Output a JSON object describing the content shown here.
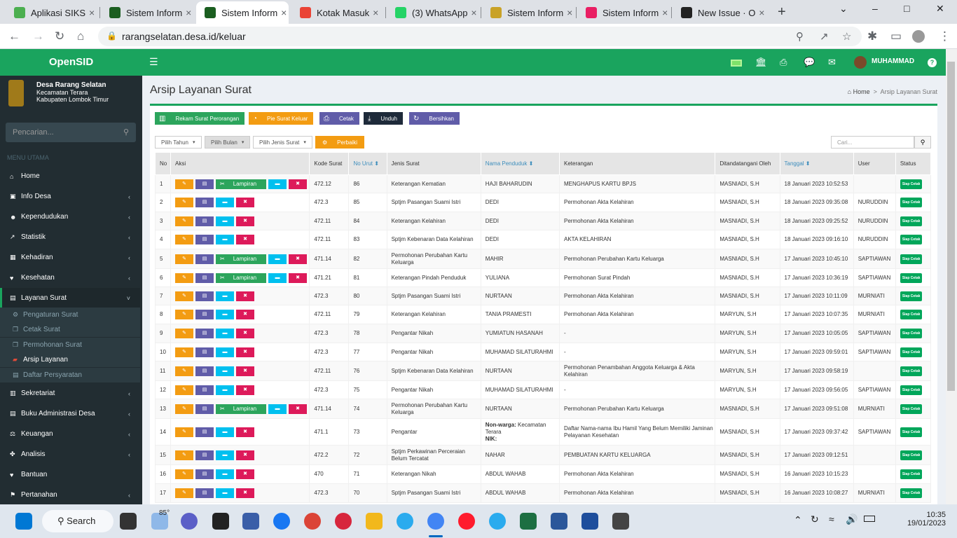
{
  "browser": {
    "tabs": [
      {
        "title": "Aplikasi SIKS",
        "color": "#4caf50",
        "active": false
      },
      {
        "title": "Sistem Inform",
        "color": "#1b5e20",
        "active": false
      },
      {
        "title": "Sistem Inform",
        "color": "#1b5e20",
        "active": true
      },
      {
        "title": "Kotak Masuk",
        "color": "#ea4335",
        "active": false
      },
      {
        "title": "(3) WhatsApp",
        "color": "#25d366",
        "active": false
      },
      {
        "title": "Sistem Inform",
        "color": "#c9a227",
        "active": false
      },
      {
        "title": "Sistem Inform",
        "color": "#e91e63",
        "active": false
      },
      {
        "title": "New Issue · O",
        "color": "#222222",
        "active": false
      }
    ],
    "url": "rarangselatan.desa.id/keluar"
  },
  "sidebar": {
    "app_name": "OpenSID",
    "village_name": "Desa Rarang Selatan",
    "district": "Kecamatan Terara",
    "regency": "Kabupaten Lombok Timur",
    "search_placeholder": "Pencarian...",
    "menu_header": "MENU UTAMA",
    "items": [
      {
        "label": "Home",
        "icon": "home-icon",
        "chevron": false
      },
      {
        "label": "Info Desa",
        "icon": "building-icon",
        "chevron": true
      },
      {
        "label": "Kependudukan",
        "icon": "users-icon",
        "chevron": true
      },
      {
        "label": "Statistik",
        "icon": "chart-icon",
        "chevron": true
      },
      {
        "label": "Kehadiran",
        "icon": "calendar-icon",
        "chevron": true
      },
      {
        "label": "Kesehatan",
        "icon": "heartbeat-icon",
        "chevron": true
      },
      {
        "label": "Layanan Surat",
        "icon": "book-icon",
        "chevron": true
      }
    ],
    "subitems": [
      {
        "label": "Pengaturan Surat",
        "icon": "gear-icon"
      },
      {
        "label": "Cetak Surat",
        "icon": "files-icon"
      },
      {
        "label": "Permohonan Surat",
        "icon": "files-icon"
      },
      {
        "label": "Arsip Layanan",
        "icon": "folder-icon"
      },
      {
        "label": "Daftar Persyaratan",
        "icon": "book-icon"
      }
    ],
    "items2": [
      {
        "label": "Sekretariat",
        "icon": "archive-icon"
      },
      {
        "label": "Buku Administrasi Desa",
        "icon": "book-icon"
      },
      {
        "label": "Keuangan",
        "icon": "balance-icon"
      },
      {
        "label": "Analisis",
        "icon": "analysis-icon"
      },
      {
        "label": "Bantuan",
        "icon": "heart-icon"
      },
      {
        "label": "Pertanahan",
        "icon": "map-icon"
      }
    ]
  },
  "topnav": {
    "user": "MUHAMMAD"
  },
  "page": {
    "title": "Arsip Layanan Surat",
    "breadcrumb_home": "Home",
    "breadcrumb_current": "Arsip Layanan Surat",
    "toolbar": [
      {
        "label": "Rekam Surat Perorangan",
        "color": "#2ca55c"
      },
      {
        "label": "Pie Surat Keluar",
        "color": "#f39c12"
      },
      {
        "label": "Cetak",
        "color": "#605ca8"
      },
      {
        "label": "Unduh",
        "color": "#1e2a3a"
      },
      {
        "label": "Bersihkan",
        "color": "#605ca8"
      }
    ],
    "filters": [
      "Pilih Tahun",
      "Pilih Bulan",
      "Pilih Jenis Surat"
    ],
    "fix_label": "Perbaiki",
    "search_placeholder": "Cari...",
    "columns": [
      "No",
      "Aksi",
      "Kode Surat",
      "No Urut",
      "Jenis Surat",
      "Nama Penduduk",
      "Keterangan",
      "Ditandatangani Oleh",
      "Tanggal",
      "User",
      "Status"
    ],
    "lampiran_label": "Lampiran",
    "status_label": "Siap Cetak",
    "rows": [
      {
        "no": "1",
        "lamp": true,
        "kode": "472.12",
        "urut": "86",
        "jenis": "Keterangan Kematian",
        "nama": "HAJI BAHARUDIN",
        "ket": "MENGHAPUS KARTU BPJS",
        "ttd": "MASNIADI, S.H",
        "tgl": "18 Januari 2023 10:52:53",
        "user": ""
      },
      {
        "no": "2",
        "lamp": false,
        "kode": "472.3",
        "urut": "85",
        "jenis": "Sptjm Pasangan Suami Istri",
        "nama": "DEDI",
        "ket": "Permohonan Akta Kelahiran",
        "ttd": "MASNIADI, S.H",
        "tgl": "18 Januari 2023 09:35:08",
        "user": "NURUDDIN"
      },
      {
        "no": "3",
        "lamp": false,
        "kode": "472.11",
        "urut": "84",
        "jenis": "Keterangan Kelahiran",
        "nama": "DEDI",
        "ket": "Permohonan Akta Kelahiran",
        "ttd": "MASNIADI, S.H",
        "tgl": "18 Januari 2023 09:25:52",
        "user": "NURUDDIN"
      },
      {
        "no": "4",
        "lamp": false,
        "kode": "472.11",
        "urut": "83",
        "jenis": "Sptjm Kebenaran Data Kelahiran",
        "nama": "DEDI",
        "ket": "AKTA KELAHIRAN",
        "ttd": "MASNIADI, S.H",
        "tgl": "18 Januari 2023 09:16:10",
        "user": "NURUDDIN"
      },
      {
        "no": "5",
        "lamp": true,
        "kode": "471.14",
        "urut": "82",
        "jenis": "Permohonan Perubahan Kartu Keluarga",
        "nama": "MAHIR",
        "ket": "Permohonan Perubahan Kartu Keluarga",
        "ttd": "MASNIADI, S.H",
        "tgl": "17 Januari 2023 10:45:10",
        "user": "SAPTIAWAN"
      },
      {
        "no": "6",
        "lamp": true,
        "kode": "471.21",
        "urut": "81",
        "jenis": "Keterangan Pindah Penduduk",
        "nama": "YULIANA",
        "ket": "Permohonan Surat Pindah",
        "ttd": "MASNIADI, S.H",
        "tgl": "17 Januari 2023 10:36:19",
        "user": "SAPTIAWAN"
      },
      {
        "no": "7",
        "lamp": false,
        "kode": "472.3",
        "urut": "80",
        "jenis": "Sptjm Pasangan Suami Istri",
        "nama": "NURTAAN",
        "ket": "Permohonan Akta Kelahiran",
        "ttd": "MASNIADI, S.H",
        "tgl": "17 Januari 2023 10:11:09",
        "user": "MURNIATI"
      },
      {
        "no": "8",
        "lamp": false,
        "kode": "472.11",
        "urut": "79",
        "jenis": "Keterangan Kelahiran",
        "nama": "TANIA PRAMESTI",
        "ket": "Permohonan Akta Kelahiran",
        "ttd": "MARYUN, S.H",
        "tgl": "17 Januari 2023 10:07:35",
        "user": "MURNIATI"
      },
      {
        "no": "9",
        "lamp": false,
        "kode": "472.3",
        "urut": "78",
        "jenis": "Pengantar Nikah",
        "nama": "YUMIATUN HASANAH",
        "ket": "-",
        "ttd": "MARYUN, S.H",
        "tgl": "17 Januari 2023 10:05:05",
        "user": "SAPTIAWAN"
      },
      {
        "no": "10",
        "lamp": false,
        "kode": "472.3",
        "urut": "77",
        "jenis": "Pengantar Nikah",
        "nama": "MUHAMAD SILATURAHMI",
        "ket": "-",
        "ttd": "MARYUN, S.H",
        "tgl": "17 Januari 2023 09:59:01",
        "user": "SAPTIAWAN"
      },
      {
        "no": "11",
        "lamp": false,
        "kode": "472.11",
        "urut": "76",
        "jenis": "Sptjm Kebenaran Data Kelahiran",
        "nama": "NURTAAN",
        "ket": "Permohonan Penambahan Anggota Keluarga & Akta Kelahiran",
        "ttd": "MARYUN, S.H",
        "tgl": "17 Januari 2023 09:58:19",
        "user": ""
      },
      {
        "no": "12",
        "lamp": false,
        "kode": "472.3",
        "urut": "75",
        "jenis": "Pengantar Nikah",
        "nama": "MUHAMAD SILATURAHMI",
        "ket": "-",
        "ttd": "MARYUN, S.H",
        "tgl": "17 Januari 2023 09:56:05",
        "user": "SAPTIAWAN"
      },
      {
        "no": "13",
        "lamp": true,
        "kode": "471.14",
        "urut": "74",
        "jenis": "Permohonan Perubahan Kartu Keluarga",
        "nama": "NURTAAN",
        "ket": "Permohonan Perubahan Kartu Keluarga",
        "ttd": "MASNIADI, S.H",
        "tgl": "17 Januari 2023 09:51:08",
        "user": "MURNIATI"
      },
      {
        "no": "14",
        "lamp": false,
        "kode": "471.1",
        "urut": "73",
        "jenis": "Pengantar",
        "nama": "",
        "nonwarga": true,
        "ket": "Daftar Nama-nama Ibu Hamil Yang Belum Memiliki Jaminan Pelayanan Kesehatan",
        "ttd": "MASNIADI, S.H",
        "tgl": "17 Januari 2023 09:37:42",
        "user": "SAPTIAWAN"
      },
      {
        "no": "15",
        "lamp": false,
        "kode": "472.2",
        "urut": "72",
        "jenis": "Sptjm Perkawinan Perceraian Belum Tercatat",
        "nama": "NAHAR",
        "ket": "PEMBUATAN KARTU KELUARGA",
        "ttd": "MASNIADI, S.H",
        "tgl": "17 Januari 2023 09:12:51",
        "user": ""
      },
      {
        "no": "16",
        "lamp": false,
        "kode": "470",
        "urut": "71",
        "jenis": "Keterangan Nikah",
        "nama": "ABDUL WAHAB",
        "ket": "Permohonan Akta Kelahiran",
        "ttd": "MASNIADI, S.H",
        "tgl": "16 Januari 2023 10:15:23",
        "user": ""
      },
      {
        "no": "17",
        "lamp": false,
        "kode": "472.3",
        "urut": "70",
        "jenis": "Sptjm Pasangan Suami Istri",
        "nama": "ABDUL WAHAB",
        "ket": "Permohonan Akta Kelahiran",
        "ttd": "MASNIADI, S.H",
        "tgl": "16 Januari 2023 10:08:27",
        "user": "MURNIATI"
      }
    ],
    "nonwarga_label": "Non-warga:",
    "nonwarga_value": "Kecamatan Terara",
    "nik_label": "NIK:"
  },
  "taskbar": {
    "search": "Search",
    "weather": "85°",
    "time": "10:35",
    "date": "19/01/2023"
  }
}
